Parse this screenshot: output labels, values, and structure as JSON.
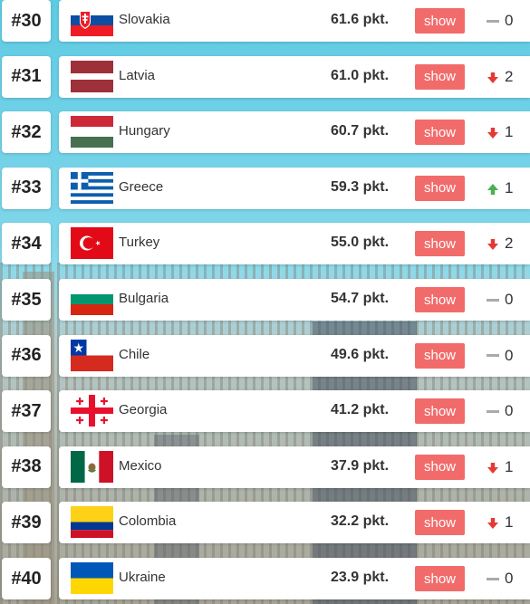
{
  "colors": {
    "accent": "#f26b6b",
    "up": "#4caf50",
    "down": "#e53935",
    "neutral": "#aaaaaa"
  },
  "rankings": [
    {
      "rank": "#30",
      "country": "Slovakia",
      "points": "61.6 pkt.",
      "button": "show",
      "change_dir": "none",
      "change": "0",
      "flag": "slovakia-flag-icon"
    },
    {
      "rank": "#31",
      "country": "Latvia",
      "points": "61.0 pkt.",
      "button": "show",
      "change_dir": "down",
      "change": "2",
      "flag": "latvia-flag-icon"
    },
    {
      "rank": "#32",
      "country": "Hungary",
      "points": "60.7 pkt.",
      "button": "show",
      "change_dir": "down",
      "change": "1",
      "flag": "hungary-flag-icon"
    },
    {
      "rank": "#33",
      "country": "Greece",
      "points": "59.3 pkt.",
      "button": "show",
      "change_dir": "up",
      "change": "1",
      "flag": "greece-flag-icon"
    },
    {
      "rank": "#34",
      "country": "Turkey",
      "points": "55.0 pkt.",
      "button": "show",
      "change_dir": "down",
      "change": "2",
      "flag": "turkey-flag-icon"
    },
    {
      "rank": "#35",
      "country": "Bulgaria",
      "points": "54.7 pkt.",
      "button": "show",
      "change_dir": "none",
      "change": "0",
      "flag": "bulgaria-flag-icon"
    },
    {
      "rank": "#36",
      "country": "Chile",
      "points": "49.6 pkt.",
      "button": "show",
      "change_dir": "none",
      "change": "0",
      "flag": "chile-flag-icon"
    },
    {
      "rank": "#37",
      "country": "Georgia",
      "points": "41.2 pkt.",
      "button": "show",
      "change_dir": "none",
      "change": "0",
      "flag": "georgia-flag-icon"
    },
    {
      "rank": "#38",
      "country": "Mexico",
      "points": "37.9 pkt.",
      "button": "show",
      "change_dir": "down",
      "change": "1",
      "flag": "mexico-flag-icon"
    },
    {
      "rank": "#39",
      "country": "Colombia",
      "points": "32.2 pkt.",
      "button": "show",
      "change_dir": "down",
      "change": "1",
      "flag": "colombia-flag-icon"
    },
    {
      "rank": "#40",
      "country": "Ukraine",
      "points": "23.9 pkt.",
      "button": "show",
      "change_dir": "none",
      "change": "0",
      "flag": "ukraine-flag-icon"
    }
  ]
}
